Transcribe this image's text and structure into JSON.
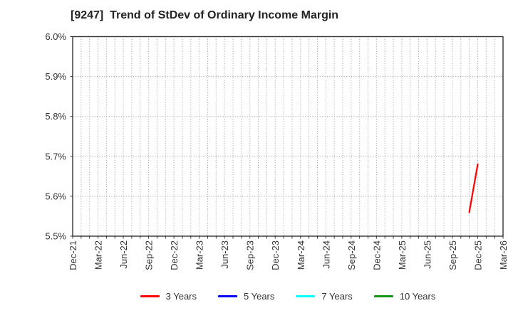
{
  "chart_data": {
    "type": "line",
    "title": "[9247]  Trend of StDev of Ordinary Income Margin",
    "xlabel": "",
    "ylabel": "",
    "ylim": [
      5.5,
      6.0
    ],
    "ytick_step": 0.1,
    "ytick_labels": [
      "5.5%",
      "5.6%",
      "5.7%",
      "5.8%",
      "5.9%",
      "6.0%"
    ],
    "x_tick_labels": [
      "Dec-21",
      "Mar-22",
      "Jun-22",
      "Sep-22",
      "Dec-22",
      "Mar-23",
      "Jun-23",
      "Sep-23",
      "Dec-23",
      "Mar-24",
      "Jun-24",
      "Sep-24",
      "Dec-24",
      "Mar-25",
      "Jun-25",
      "Sep-25",
      "Dec-25",
      "Mar-26"
    ],
    "months_per_tick": 3,
    "total_months": 51,
    "grid": "dotted vertical line per month, dotted horizontal line per 0.1%",
    "legend_position": "bottom",
    "series": [
      {
        "name": "3 Years",
        "color": "#ff0000",
        "points": [
          {
            "month_index": 47,
            "x_label": "Nov-25",
            "value": 5.56
          },
          {
            "month_index": 48,
            "x_label": "Dec-25",
            "value": 5.68
          }
        ]
      },
      {
        "name": "5 Years",
        "color": "#0000ff",
        "points": []
      },
      {
        "name": "7 Years",
        "color": "#00ffff",
        "points": []
      },
      {
        "name": "10 Years",
        "color": "#149414",
        "points": []
      }
    ]
  }
}
